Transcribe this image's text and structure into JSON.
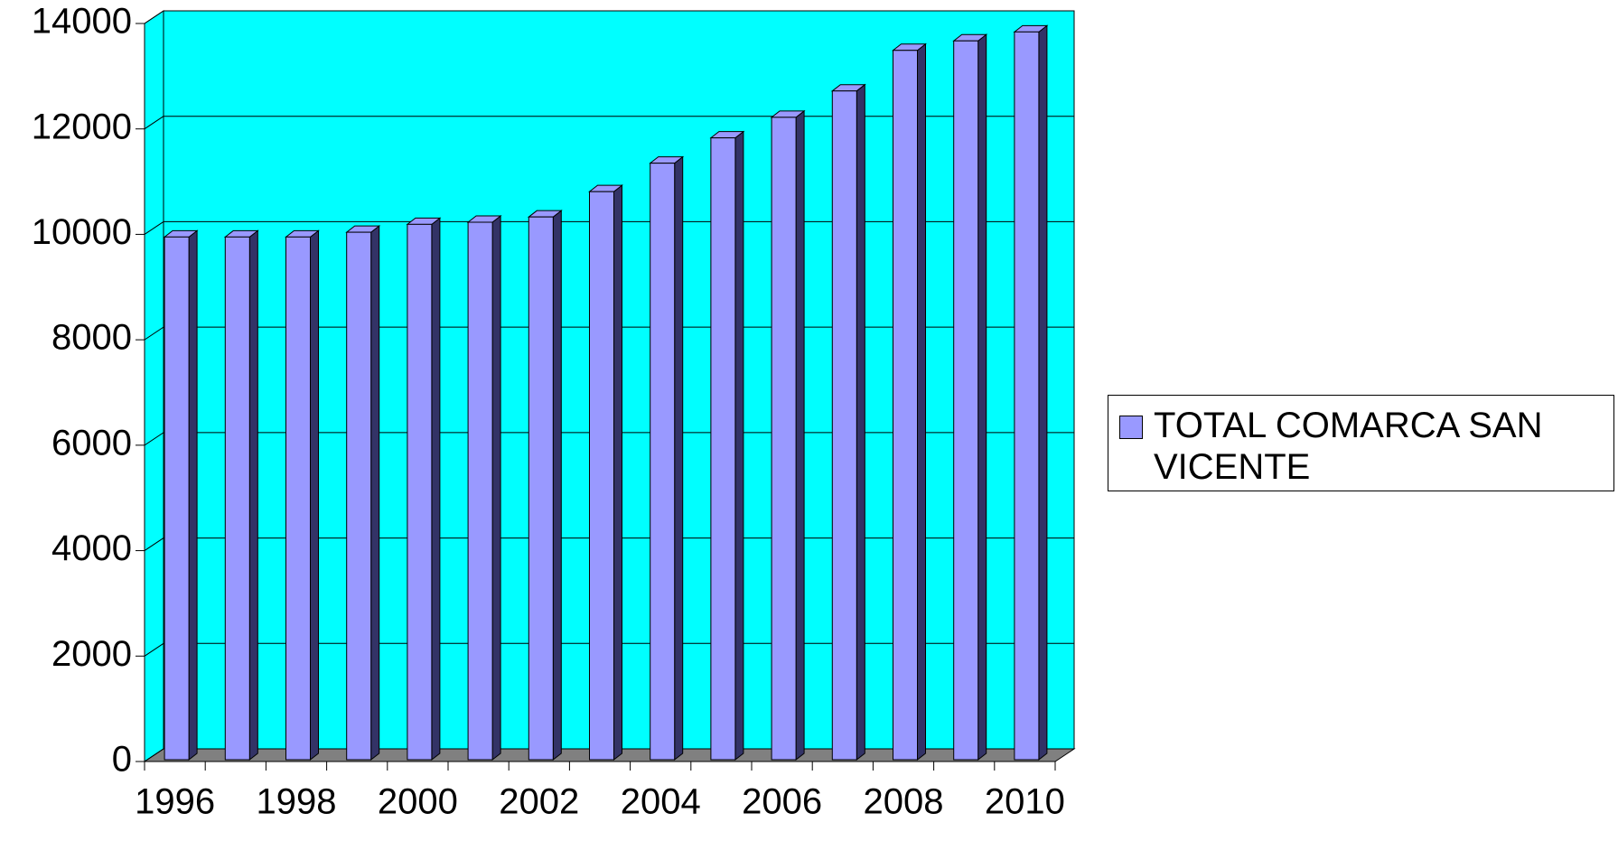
{
  "chart_data": {
    "type": "bar3d",
    "categories": [
      "1996",
      null,
      "1998",
      null,
      "2000",
      null,
      "2002",
      null,
      "2004",
      null,
      "2006",
      null,
      "2008",
      null,
      "2010"
    ],
    "series": [
      {
        "name": "TOTAL COMARCA SAN VICENTE",
        "color": "#9999ff",
        "values": [
          9950,
          9950,
          9950,
          10040,
          10190,
          10230,
          10330,
          10810,
          11350,
          11830,
          12220,
          12720,
          13490,
          13670,
          13840
        ]
      }
    ],
    "ylim": [
      0,
      14000
    ],
    "yticks": [
      0,
      2000,
      4000,
      6000,
      8000,
      10000,
      12000,
      14000
    ],
    "grid": true,
    "legend": "right"
  }
}
